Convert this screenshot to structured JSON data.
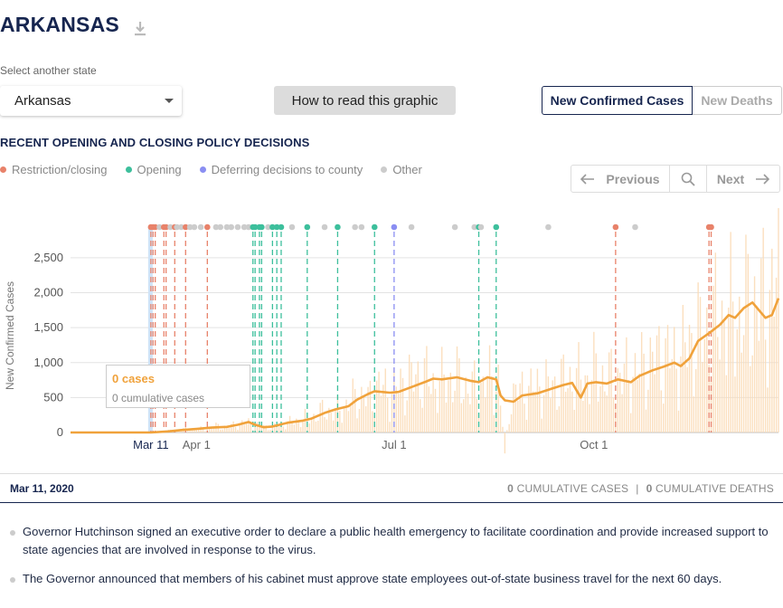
{
  "header": {
    "title": "ARKANSAS",
    "download_icon": "download-icon"
  },
  "selector": {
    "label": "Select another state",
    "value": "Arkansas"
  },
  "how_button": "How to read this graphic",
  "toggle": {
    "active": "New Confirmed Cases",
    "inactive": "New Deaths"
  },
  "policy_heading": "RECENT OPENING AND CLOSING POLICY DECISIONS",
  "legend": [
    {
      "label": "Restriction/closing",
      "color": "#e8826a"
    },
    {
      "label": "Opening",
      "color": "#3dbf9c"
    },
    {
      "label": "Deferring decisions to county",
      "color": "#8a8ef2"
    },
    {
      "label": "Other",
      "color": "#cccccc"
    }
  ],
  "nav": {
    "previous": "Previous",
    "next": "Next"
  },
  "tooltip": {
    "cases": "0 cases",
    "cumulative": "0 cumulative cases"
  },
  "selected": {
    "date": "Mar 11, 2020",
    "cases_value": "0",
    "cases_label": "CUMULATIVE CASES",
    "separator": "|",
    "deaths_value": "0",
    "deaths_label": "CUMULATIVE DEATHS"
  },
  "events": [
    "Governor Hutchinson signed an executive order to declare a public health emergency to facilitate coordination and provide increased support to state agencies that are involved in response to the virus.",
    "The Governor announced that members of his cabinet must approve state employees out-of-state business travel for the next 60 days."
  ],
  "chart_data": {
    "type": "line",
    "ylabel": "New Confirmed Cases",
    "yticks": [
      0,
      500,
      1000,
      1500,
      2000,
      2500
    ],
    "ylim": [
      0,
      2900
    ],
    "xlim": [
      -37,
      289
    ],
    "xticks": [
      {
        "day": 0,
        "label": "Mar 11",
        "highlight": true
      },
      {
        "day": 21,
        "label": "Apr 1"
      },
      {
        "day": 112,
        "label": "Jul 1"
      },
      {
        "day": 204,
        "label": "Oct 1"
      }
    ],
    "selected_day": 0,
    "series": [
      {
        "average": [
          [
            -37,
            0
          ],
          [
            0,
            0
          ],
          [
            8,
            15
          ],
          [
            14,
            35
          ],
          [
            21,
            50
          ],
          [
            28,
            70
          ],
          [
            35,
            80
          ],
          [
            40,
            110
          ],
          [
            45,
            150
          ],
          [
            48,
            110
          ],
          [
            52,
            75
          ],
          [
            56,
            85
          ],
          [
            63,
            140
          ],
          [
            70,
            170
          ],
          [
            74,
            200
          ],
          [
            80,
            280
          ],
          [
            85,
            330
          ],
          [
            91,
            375
          ],
          [
            95,
            470
          ],
          [
            100,
            550
          ],
          [
            103,
            590
          ],
          [
            110,
            570
          ],
          [
            114,
            580
          ],
          [
            120,
            650
          ],
          [
            126,
            720
          ],
          [
            130,
            770
          ],
          [
            134,
            760
          ],
          [
            141,
            790
          ],
          [
            147,
            740
          ],
          [
            151,
            720
          ],
          [
            155,
            790
          ],
          [
            159,
            760
          ],
          [
            161,
            530
          ],
          [
            163,
            460
          ],
          [
            167,
            440
          ],
          [
            171,
            530
          ],
          [
            178,
            560
          ],
          [
            185,
            630
          ],
          [
            190,
            680
          ],
          [
            194,
            710
          ],
          [
            198,
            500
          ],
          [
            201,
            700
          ],
          [
            205,
            720
          ],
          [
            210,
            700
          ],
          [
            215,
            760
          ],
          [
            221,
            720
          ],
          [
            225,
            810
          ],
          [
            231,
            890
          ],
          [
            236,
            940
          ],
          [
            241,
            1000
          ],
          [
            244,
            950
          ],
          [
            248,
            1060
          ],
          [
            252,
            1310
          ],
          [
            257,
            1420
          ],
          [
            262,
            1540
          ],
          [
            266,
            1680
          ],
          [
            269,
            1640
          ],
          [
            273,
            1780
          ],
          [
            277,
            1860
          ],
          [
            280,
            1750
          ],
          [
            283,
            1640
          ],
          [
            286,
            1680
          ],
          [
            289,
            1920
          ]
        ],
        "daily": [
          [
            -37,
            0
          ],
          [
            0,
            0
          ],
          [
            5,
            20
          ],
          [
            10,
            40
          ],
          [
            15,
            60
          ],
          [
            20,
            80
          ],
          [
            25,
            60
          ],
          [
            30,
            120
          ],
          [
            35,
            100
          ],
          [
            40,
            160
          ],
          [
            45,
            180
          ],
          [
            50,
            120
          ],
          [
            55,
            100
          ],
          [
            60,
            150
          ],
          [
            65,
            200
          ],
          [
            70,
            260
          ],
          [
            75,
            300
          ],
          [
            80,
            420
          ],
          [
            85,
            380
          ],
          [
            90,
            520
          ],
          [
            95,
            700
          ],
          [
            100,
            620
          ],
          [
            105,
            880
          ],
          [
            110,
            760
          ],
          [
            115,
            900
          ],
          [
            120,
            1000
          ],
          [
            125,
            1100
          ],
          [
            130,
            920
          ],
          [
            135,
            960
          ],
          [
            140,
            1040
          ],
          [
            145,
            880
          ],
          [
            150,
            820
          ],
          [
            155,
            1000
          ],
          [
            160,
            980
          ],
          [
            163,
            -300
          ],
          [
            166,
            700
          ],
          [
            170,
            780
          ],
          [
            175,
            820
          ],
          [
            180,
            900
          ],
          [
            185,
            860
          ],
          [
            190,
            980
          ],
          [
            195,
            1020
          ],
          [
            200,
            1000
          ],
          [
            205,
            1160
          ],
          [
            210,
            1000
          ],
          [
            215,
            1060
          ],
          [
            220,
            1100
          ],
          [
            225,
            1200
          ],
          [
            230,
            1320
          ],
          [
            235,
            1480
          ],
          [
            240,
            1400
          ],
          [
            245,
            1520
          ],
          [
            250,
            1760
          ],
          [
            255,
            1900
          ],
          [
            260,
            2080
          ],
          [
            265,
            2240
          ],
          [
            270,
            2160
          ],
          [
            275,
            2380
          ],
          [
            280,
            2500
          ],
          [
            284,
            2350
          ],
          [
            286,
            2780
          ],
          [
            289,
            2840
          ]
        ]
      }
    ],
    "policy_events": [
      {
        "day": 0,
        "type": "restriction"
      },
      {
        "day": 1,
        "type": "restriction"
      },
      {
        "day": 2,
        "type": "restriction"
      },
      {
        "day": 4,
        "type": "other"
      },
      {
        "day": 6,
        "type": "restriction"
      },
      {
        "day": 7,
        "type": "restriction"
      },
      {
        "day": 9,
        "type": "other"
      },
      {
        "day": 11,
        "type": "restriction"
      },
      {
        "day": 12,
        "type": "other"
      },
      {
        "day": 14,
        "type": "other"
      },
      {
        "day": 16,
        "type": "restriction"
      },
      {
        "day": 18,
        "type": "other"
      },
      {
        "day": 20,
        "type": "other"
      },
      {
        "day": 23,
        "type": "other"
      },
      {
        "day": 26,
        "type": "restriction"
      },
      {
        "day": 30,
        "type": "other"
      },
      {
        "day": 32,
        "type": "other"
      },
      {
        "day": 35,
        "type": "other"
      },
      {
        "day": 37,
        "type": "other"
      },
      {
        "day": 40,
        "type": "other"
      },
      {
        "day": 43,
        "type": "other"
      },
      {
        "day": 45,
        "type": "other"
      },
      {
        "day": 47,
        "type": "opening"
      },
      {
        "day": 48,
        "type": "opening"
      },
      {
        "day": 50,
        "type": "opening"
      },
      {
        "day": 51,
        "type": "opening"
      },
      {
        "day": 54,
        "type": "other"
      },
      {
        "day": 56,
        "type": "opening"
      },
      {
        "day": 58,
        "type": "opening"
      },
      {
        "day": 60,
        "type": "opening"
      },
      {
        "day": 65,
        "type": "other"
      },
      {
        "day": 72,
        "type": "opening"
      },
      {
        "day": 80,
        "type": "other"
      },
      {
        "day": 86,
        "type": "opening"
      },
      {
        "day": 94,
        "type": "other"
      },
      {
        "day": 97,
        "type": "other"
      },
      {
        "day": 103,
        "type": "opening"
      },
      {
        "day": 112,
        "type": "county"
      },
      {
        "day": 120,
        "type": "other"
      },
      {
        "day": 140,
        "type": "other"
      },
      {
        "day": 149,
        "type": "other"
      },
      {
        "day": 151,
        "type": "opening"
      },
      {
        "day": 152,
        "type": "other"
      },
      {
        "day": 159,
        "type": "opening"
      },
      {
        "day": 183,
        "type": "other"
      },
      {
        "day": 214,
        "type": "restriction"
      },
      {
        "day": 223,
        "type": "other"
      },
      {
        "day": 257,
        "type": "restriction"
      },
      {
        "day": 258,
        "type": "restriction"
      }
    ]
  }
}
